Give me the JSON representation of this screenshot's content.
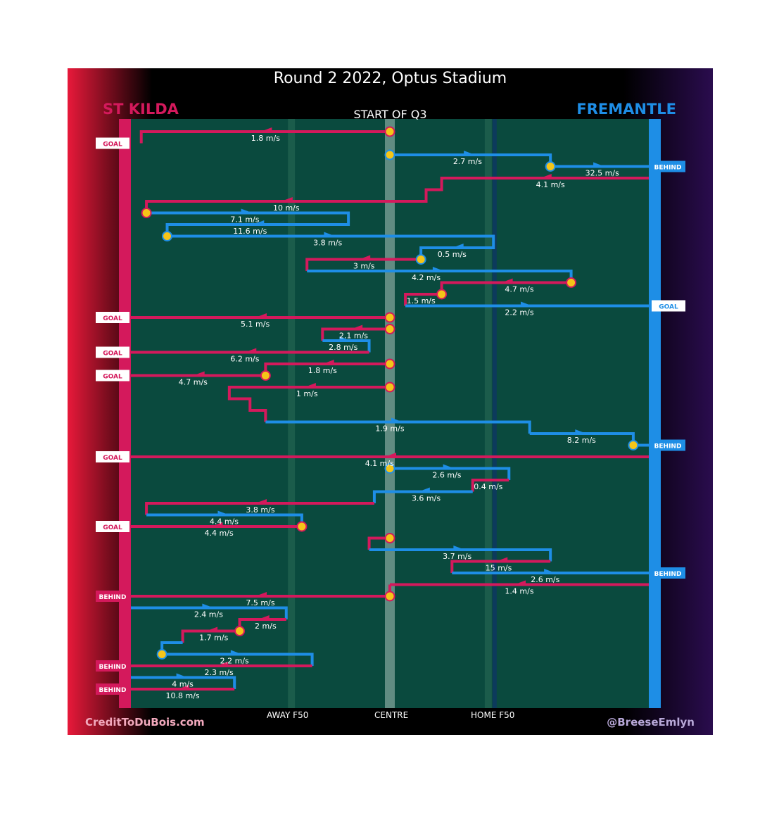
{
  "title": "Round 2 2022, Optus Stadium",
  "subtitle": "START OF Q3",
  "teams": {
    "home": "ST KILDA",
    "away": "FREMANTLE"
  },
  "credits": {
    "left": "CreditToDuBois.com",
    "right": "@BreeseEmlyn"
  },
  "colors": {
    "home": "#d4195c",
    "away": "#1e8ee6",
    "field": "#0a4a3e",
    "marker": "#f5c518",
    "background": "#000000"
  },
  "chart_data": {
    "type": "line",
    "description_free": true,
    "x_axis": {
      "min": 0,
      "max": 100,
      "ticks": [
        {
          "x": 31,
          "label": "AWAY F50"
        },
        {
          "x": 50,
          "label": "CENTRE"
        },
        {
          "x": 69,
          "label": "HOME F50"
        }
      ]
    },
    "outcome_labels": [
      "GOAL",
      "BEHIND"
    ],
    "chains": [
      {
        "team": "home",
        "path": [
          [
            50,
            0
          ],
          [
            2,
            0
          ],
          [
            2,
            2
          ]
        ],
        "speeds": [
          {
            "x": 26,
            "row": 0,
            "text": "1.8 m/s"
          }
        ],
        "start": [
          [
            50,
            0
          ]
        ],
        "end": {
          "label": "GOAL",
          "side": "left",
          "row": 2,
          "x": 2
        }
      },
      {
        "team": "away",
        "path": [
          [
            50,
            4
          ],
          [
            81,
            4
          ],
          [
            81,
            6
          ],
          [
            100,
            6
          ]
        ],
        "speeds": [
          {
            "x": 65,
            "row": 4,
            "text": "2.7 m/s"
          },
          {
            "x": 91,
            "row": 6,
            "text": "32.5 m/s"
          }
        ],
        "start": [
          [
            50,
            4
          ],
          [
            81,
            6
          ]
        ],
        "end": {
          "label": "BEHIND",
          "side": "right",
          "row": 6
        }
      },
      {
        "team": "home",
        "path": [
          [
            100,
            8
          ],
          [
            60,
            8
          ],
          [
            60,
            10
          ],
          [
            57,
            10
          ],
          [
            57,
            12
          ],
          [
            3,
            12
          ],
          [
            3,
            14
          ]
        ],
        "speeds": [
          {
            "x": 81,
            "row": 8,
            "text": "4.1 m/s"
          },
          {
            "x": 30,
            "row": 12,
            "text": "10 m/s"
          }
        ],
        "start": [
          [
            3,
            14
          ]
        ]
      },
      {
        "team": "away",
        "path": [
          [
            3,
            14
          ],
          [
            42,
            14
          ],
          [
            42,
            16
          ],
          [
            7,
            16
          ],
          [
            7,
            18
          ]
        ],
        "speeds": [
          {
            "x": 22,
            "row": 14,
            "text": "7.1 m/s"
          },
          {
            "x": 23,
            "row": 16,
            "text": "11.6 m/s"
          }
        ],
        "start": [
          [
            7,
            18
          ]
        ]
      },
      {
        "team": "away",
        "path": [
          [
            7,
            18
          ],
          [
            70,
            18
          ],
          [
            70,
            20
          ],
          [
            56,
            20
          ],
          [
            56,
            22
          ]
        ],
        "speeds": [
          {
            "x": 38,
            "row": 18,
            "text": "3.8 m/s"
          },
          {
            "x": 62,
            "row": 20,
            "text": "0.5 m/s"
          }
        ],
        "start": [
          [
            56,
            22
          ]
        ]
      },
      {
        "team": "home",
        "path": [
          [
            56,
            22
          ],
          [
            34,
            22
          ],
          [
            34,
            24
          ]
        ],
        "speeds": [
          {
            "x": 45,
            "row": 22,
            "text": "3 m/s"
          }
        ]
      },
      {
        "team": "away",
        "path": [
          [
            34,
            24
          ],
          [
            85,
            24
          ],
          [
            85,
            26
          ]
        ],
        "speeds": [
          {
            "x": 57,
            "row": 24,
            "text": "4.2 m/s"
          }
        ]
      },
      {
        "team": "home",
        "path": [
          [
            85,
            26
          ],
          [
            60,
            26
          ],
          [
            60,
            28
          ],
          [
            53,
            28
          ],
          [
            53,
            30
          ]
        ],
        "speeds": [
          {
            "x": 75,
            "row": 26,
            "text": "4.7 m/s"
          },
          {
            "x": 56,
            "row": 28,
            "text": "1.5 m/s"
          }
        ],
        "start": [
          [
            85,
            26
          ],
          [
            60,
            28
          ]
        ]
      },
      {
        "team": "away",
        "path": [
          [
            53,
            30
          ],
          [
            100,
            30
          ]
        ],
        "speeds": [
          {
            "x": 75,
            "row": 30,
            "text": "2.2 m/s"
          }
        ],
        "end": {
          "label": "GOAL",
          "side": "right",
          "row": 30
        }
      },
      {
        "team": "home",
        "path": [
          [
            50,
            32
          ],
          [
            0,
            32
          ]
        ],
        "speeds": [
          {
            "x": 24,
            "row": 32,
            "text": "5.1 m/s"
          }
        ],
        "start": [
          [
            50,
            32
          ]
        ],
        "end": {
          "label": "GOAL",
          "side": "left",
          "row": 32,
          "x": 0
        }
      },
      {
        "team": "home",
        "path": [
          [
            50,
            34
          ],
          [
            37,
            34
          ],
          [
            37,
            36
          ]
        ],
        "speeds": [
          {
            "x": 43,
            "row": 34,
            "text": "2.1 m/s"
          }
        ],
        "start": [
          [
            50,
            34
          ]
        ]
      },
      {
        "team": "away",
        "path": [
          [
            37,
            36
          ],
          [
            46,
            36
          ],
          [
            46,
            38
          ]
        ],
        "speeds": [
          {
            "x": 41,
            "row": 36,
            "text": "2.8 m/s"
          }
        ]
      },
      {
        "team": "home",
        "path": [
          [
            46,
            38
          ],
          [
            0,
            38
          ]
        ],
        "speeds": [
          {
            "x": 22,
            "row": 38,
            "text": "6.2 m/s"
          }
        ],
        "end": {
          "label": "GOAL",
          "side": "left",
          "row": 38,
          "x": 0
        }
      },
      {
        "team": "home",
        "path": [
          [
            50,
            40
          ],
          [
            26,
            40
          ],
          [
            26,
            42
          ],
          [
            0,
            42
          ]
        ],
        "speeds": [
          {
            "x": 37,
            "row": 40,
            "text": "1.8 m/s"
          },
          {
            "x": 12,
            "row": 42,
            "text": "4.7 m/s"
          }
        ],
        "start": [
          [
            50,
            40
          ],
          [
            26,
            42
          ]
        ],
        "end": {
          "label": "GOAL",
          "side": "left",
          "row": 42,
          "x": 0
        }
      },
      {
        "team": "home",
        "path": [
          [
            50,
            44
          ],
          [
            19,
            44
          ],
          [
            19,
            46
          ],
          [
            23,
            46
          ],
          [
            23,
            48
          ],
          [
            26,
            48
          ],
          [
            26,
            50
          ]
        ],
        "speeds": [
          {
            "x": 34,
            "row": 44,
            "text": "1 m/s"
          }
        ],
        "start": [
          [
            50,
            44
          ]
        ]
      },
      {
        "team": "away",
        "path": [
          [
            26,
            50
          ],
          [
            77,
            50
          ],
          [
            77,
            52
          ]
        ],
        "speeds": [
          {
            "x": 50,
            "row": 50,
            "text": "1.9 m/s"
          }
        ]
      },
      {
        "team": "away",
        "path": [
          [
            77,
            52
          ],
          [
            97,
            52
          ],
          [
            97,
            54
          ],
          [
            100,
            54
          ]
        ],
        "speeds": [
          {
            "x": 87,
            "row": 52,
            "text": "8.2 m/s"
          }
        ],
        "start": [
          [
            97,
            54
          ]
        ],
        "end": {
          "label": "BEHIND",
          "side": "right",
          "row": 54
        }
      },
      {
        "team": "home",
        "path": [
          [
            100,
            56
          ],
          [
            0,
            56
          ]
        ],
        "speeds": [
          {
            "x": 48,
            "row": 56,
            "text": "4.1 m/s"
          }
        ],
        "end": {
          "label": "GOAL",
          "side": "left",
          "row": 56,
          "x": 0
        }
      },
      {
        "team": "away",
        "path": [
          [
            50,
            58
          ],
          [
            73,
            58
          ],
          [
            73,
            60
          ]
        ],
        "speeds": [
          {
            "x": 61,
            "row": 58,
            "text": "2.6 m/s"
          }
        ],
        "start": [
          [
            50,
            58
          ]
        ]
      },
      {
        "team": "home",
        "path": [
          [
            73,
            60
          ],
          [
            66,
            60
          ],
          [
            66,
            62
          ]
        ],
        "speeds": [
          {
            "x": 69,
            "row": 60,
            "text": "0.4 m/s"
          }
        ]
      },
      {
        "team": "away",
        "path": [
          [
            66,
            62
          ],
          [
            47,
            62
          ],
          [
            47,
            64
          ]
        ],
        "speeds": [
          {
            "x": 57,
            "row": 62,
            "text": "3.6 m/s"
          }
        ]
      },
      {
        "team": "home",
        "path": [
          [
            47,
            64
          ],
          [
            3,
            64
          ],
          [
            3,
            66
          ]
        ],
        "speeds": [
          {
            "x": 25,
            "row": 64,
            "text": "3.8 m/s"
          }
        ]
      },
      {
        "team": "away",
        "path": [
          [
            3,
            66
          ],
          [
            33,
            66
          ],
          [
            33,
            68
          ]
        ],
        "speeds": [
          {
            "x": 18,
            "row": 66,
            "text": "4.4 m/s"
          }
        ]
      },
      {
        "team": "home",
        "path": [
          [
            33,
            68
          ],
          [
            0,
            68
          ]
        ],
        "speeds": [
          {
            "x": 17,
            "row": 68,
            "text": "4.4 m/s"
          }
        ],
        "start": [
          [
            33,
            68
          ]
        ],
        "end": {
          "label": "GOAL",
          "side": "left",
          "row": 68,
          "x": 0
        }
      },
      {
        "team": "home",
        "path": [
          [
            50,
            70
          ],
          [
            46,
            70
          ],
          [
            46,
            72
          ]
        ],
        "speeds": [],
        "start": [
          [
            50,
            70
          ]
        ]
      },
      {
        "team": "away",
        "path": [
          [
            46,
            72
          ],
          [
            81,
            72
          ],
          [
            81,
            74
          ]
        ],
        "speeds": [
          {
            "x": 63,
            "row": 72,
            "text": "3.7 m/s"
          }
        ]
      },
      {
        "team": "home",
        "path": [
          [
            81,
            74
          ],
          [
            62,
            74
          ],
          [
            62,
            76
          ]
        ],
        "speeds": [
          {
            "x": 71,
            "row": 74,
            "text": "15 m/s"
          }
        ]
      },
      {
        "team": "away",
        "path": [
          [
            62,
            76
          ],
          [
            100,
            76
          ]
        ],
        "speeds": [
          {
            "x": 80,
            "row": 76,
            "text": "2.6 m/s"
          }
        ],
        "end": {
          "label": "BEHIND",
          "side": "right",
          "row": 76
        }
      },
      {
        "team": "home",
        "path": [
          [
            100,
            78
          ],
          [
            50,
            78
          ]
        ],
        "speeds": [
          {
            "x": 75,
            "row": 78,
            "text": "1.4 m/s"
          }
        ],
        "start": [
          [
            50,
            80
          ]
        ]
      },
      {
        "team": "home",
        "path": [
          [
            50,
            78
          ],
          [
            50,
            80
          ],
          [
            0,
            80
          ]
        ],
        "speeds": [
          {
            "x": 25,
            "row": 80,
            "text": "7.5 m/s"
          }
        ],
        "end": {
          "label": "BEHIND",
          "side": "left",
          "row": 80,
          "x": 0
        }
      },
      {
        "team": "away",
        "path": [
          [
            0,
            82
          ],
          [
            30,
            82
          ],
          [
            30,
            84
          ]
        ],
        "speeds": [
          {
            "x": 15,
            "row": 82,
            "text": "2.4 m/s"
          }
        ]
      },
      {
        "team": "home",
        "path": [
          [
            30,
            84
          ],
          [
            21,
            84
          ],
          [
            21,
            86
          ],
          [
            10,
            86
          ],
          [
            10,
            88
          ]
        ],
        "speeds": [
          {
            "x": 26,
            "row": 84,
            "text": "2 m/s"
          },
          {
            "x": 16,
            "row": 86,
            "text": "1.7 m/s"
          }
        ],
        "start": [
          [
            21,
            86
          ]
        ]
      },
      {
        "team": "away",
        "path": [
          [
            10,
            88
          ],
          [
            6,
            88
          ],
          [
            6,
            90
          ],
          [
            35,
            90
          ],
          [
            35,
            92
          ]
        ],
        "speeds": [
          {
            "x": 20,
            "row": 90,
            "text": "2.2 m/s"
          }
        ],
        "start": [
          [
            6,
            90
          ]
        ]
      },
      {
        "team": "home",
        "path": [
          [
            35,
            92
          ],
          [
            0,
            92
          ]
        ],
        "speeds": [
          {
            "x": 17,
            "row": 92,
            "text": "2.3 m/s"
          }
        ],
        "end": {
          "label": "BEHIND",
          "side": "left",
          "row": 92,
          "x": 0
        }
      },
      {
        "team": "away",
        "path": [
          [
            0,
            94
          ],
          [
            20,
            94
          ],
          [
            20,
            96
          ]
        ],
        "speeds": [
          {
            "x": 10,
            "row": 94,
            "text": "4 m/s"
          }
        ]
      },
      {
        "team": "home",
        "path": [
          [
            20,
            96
          ],
          [
            0,
            96
          ]
        ],
        "speeds": [
          {
            "x": 10,
            "row": 96,
            "text": "10.8 m/s"
          }
        ],
        "end": {
          "label": "BEHIND",
          "side": "left",
          "row": 96,
          "x": 0
        }
      }
    ]
  }
}
